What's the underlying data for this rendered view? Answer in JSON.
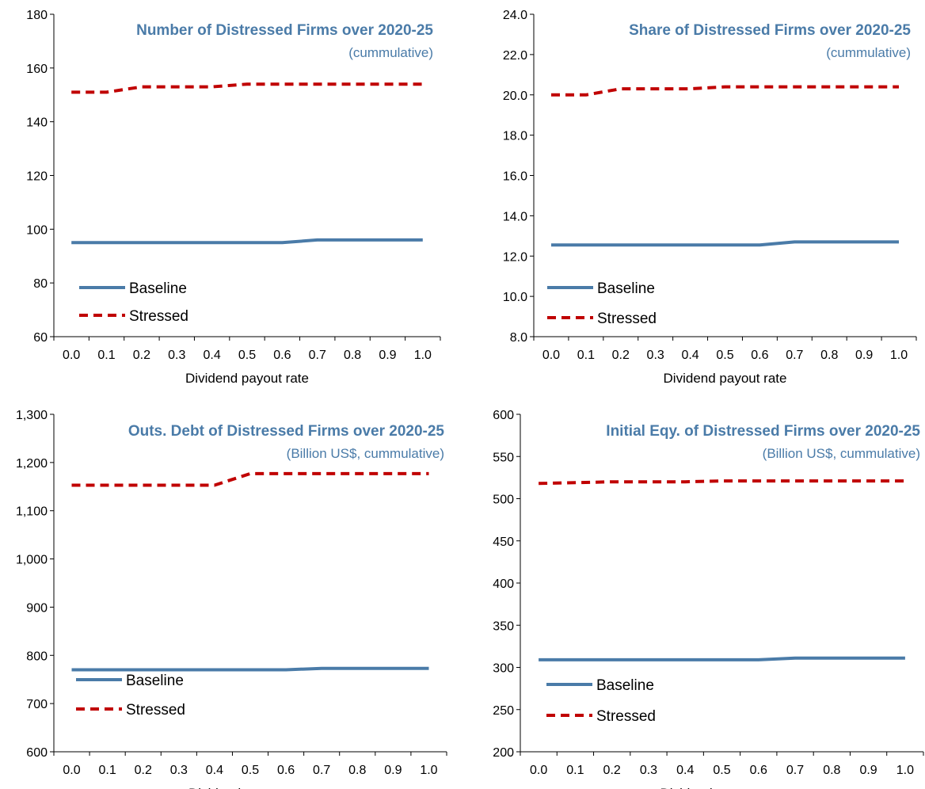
{
  "chart_data": [
    {
      "type": "line",
      "title": "Number of Distressed Firms over 2020-25",
      "subtitle": "(cummulative)",
      "xlabel": "Dividend payout rate",
      "ylabel": "",
      "x": [
        0.0,
        0.1,
        0.2,
        0.3,
        0.4,
        0.5,
        0.6,
        0.7,
        0.8,
        0.9,
        1.0
      ],
      "x_tick_labels": [
        "0.0",
        "0.1",
        "0.2",
        "0.3",
        "0.4",
        "0.5",
        "0.6",
        "0.7",
        "0.8",
        "0.9",
        "1.0"
      ],
      "ylim": [
        60,
        180
      ],
      "y_ticks": [
        60,
        80,
        100,
        120,
        140,
        160,
        180
      ],
      "y_tick_labels": [
        "60",
        "80",
        "100",
        "120",
        "140",
        "160",
        "180"
      ],
      "series": [
        {
          "name": "Baseline",
          "values": [
            95,
            95,
            95,
            95,
            95,
            95,
            95,
            96,
            96,
            96,
            96
          ],
          "color": "#4a7ba8",
          "dash": false
        },
        {
          "name": "Stressed",
          "values": [
            151,
            151,
            153,
            153,
            153,
            154,
            154,
            154,
            154,
            154,
            154
          ],
          "color": "#c00000",
          "dash": true
        }
      ],
      "legend_position": "bottom-left",
      "grid": false
    },
    {
      "type": "line",
      "title": "Share of Distressed Firms over 2020-25",
      "subtitle": "(cummulative)",
      "xlabel": "Dividend payout rate",
      "ylabel": "",
      "x": [
        0.0,
        0.1,
        0.2,
        0.3,
        0.4,
        0.5,
        0.6,
        0.7,
        0.8,
        0.9,
        1.0
      ],
      "x_tick_labels": [
        "0.0",
        "0.1",
        "0.2",
        "0.3",
        "0.4",
        "0.5",
        "0.6",
        "0.7",
        "0.8",
        "0.9",
        "1.0"
      ],
      "ylim": [
        8,
        24
      ],
      "y_ticks": [
        8,
        10,
        12,
        14,
        16,
        18,
        20,
        22,
        24
      ],
      "y_tick_labels": [
        "8.0",
        "10.0",
        "12.0",
        "14.0",
        "16.0",
        "18.0",
        "20.0",
        "22.0",
        "24.0"
      ],
      "series": [
        {
          "name": "Baseline",
          "values": [
            12.55,
            12.55,
            12.55,
            12.55,
            12.55,
            12.55,
            12.55,
            12.7,
            12.7,
            12.7,
            12.7
          ],
          "color": "#4a7ba8",
          "dash": false
        },
        {
          "name": "Stressed",
          "values": [
            20.0,
            20.0,
            20.3,
            20.3,
            20.3,
            20.4,
            20.4,
            20.4,
            20.4,
            20.4,
            20.4
          ],
          "color": "#c00000",
          "dash": true
        }
      ],
      "legend_position": "bottom-left",
      "grid": false
    },
    {
      "type": "line",
      "title": "Outs. Debt of Distressed Firms over 2020-25",
      "subtitle": "(Billion US$, cummulative)",
      "xlabel": "Dividend payout rate",
      "ylabel": "",
      "x": [
        0.0,
        0.1,
        0.2,
        0.3,
        0.4,
        0.5,
        0.6,
        0.7,
        0.8,
        0.9,
        1.0
      ],
      "x_tick_labels": [
        "0.0",
        "0.1",
        "0.2",
        "0.3",
        "0.4",
        "0.5",
        "0.6",
        "0.7",
        "0.8",
        "0.9",
        "1.0"
      ],
      "ylim": [
        600,
        1300
      ],
      "y_ticks": [
        600,
        700,
        800,
        900,
        1000,
        1100,
        1200,
        1300
      ],
      "y_tick_labels": [
        "600",
        "700",
        "800",
        "900",
        "1,000",
        "1,100",
        "1,200",
        "1,300"
      ],
      "series": [
        {
          "name": "Baseline",
          "values": [
            770,
            770,
            770,
            770,
            770,
            770,
            770,
            773,
            773,
            773,
            773
          ],
          "color": "#4a7ba8",
          "dash": false
        },
        {
          "name": "Stressed",
          "values": [
            1153,
            1153,
            1153,
            1153,
            1153,
            1177,
            1177,
            1177,
            1177,
            1177,
            1177
          ],
          "color": "#c00000",
          "dash": true
        }
      ],
      "legend_position": "bottom-left",
      "grid": false
    },
    {
      "type": "line",
      "title": "Initial Eqy. of Distressed Firms over 2020-25",
      "subtitle": "(Billion US$, cummulative)",
      "xlabel": "Dividend payout rate",
      "ylabel": "",
      "x": [
        0.0,
        0.1,
        0.2,
        0.3,
        0.4,
        0.5,
        0.6,
        0.7,
        0.8,
        0.9,
        1.0
      ],
      "x_tick_labels": [
        "0.0",
        "0.1",
        "0.2",
        "0.3",
        "0.4",
        "0.5",
        "0.6",
        "0.7",
        "0.8",
        "0.9",
        "1.0"
      ],
      "ylim": [
        200,
        600
      ],
      "y_ticks": [
        200,
        250,
        300,
        350,
        400,
        450,
        500,
        550,
        600
      ],
      "y_tick_labels": [
        "200",
        "250",
        "300",
        "350",
        "400",
        "450",
        "500",
        "550",
        "600"
      ],
      "series": [
        {
          "name": "Baseline",
          "values": [
            309,
            309,
            309,
            309,
            309,
            309,
            309,
            311,
            311,
            311,
            311
          ],
          "color": "#4a7ba8",
          "dash": false
        },
        {
          "name": "Stressed",
          "values": [
            518,
            519,
            520,
            520,
            520,
            521,
            521,
            521,
            521,
            521,
            521
          ],
          "color": "#c00000",
          "dash": true
        }
      ],
      "legend_position": "bottom-left",
      "grid": false
    }
  ]
}
